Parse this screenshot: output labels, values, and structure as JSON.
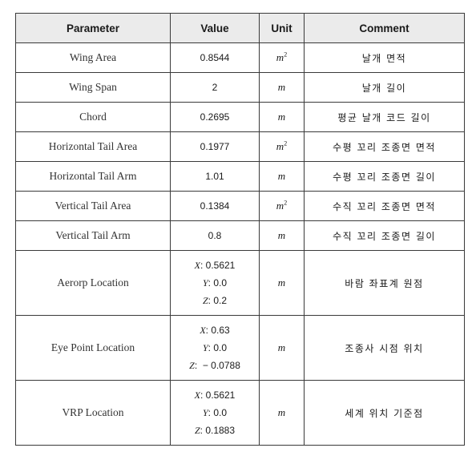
{
  "headers": [
    "Parameter",
    "Value",
    "Unit",
    "Comment"
  ],
  "rows": [
    {
      "param": "Wing Area",
      "value": "0.8544",
      "unit": "m",
      "unit_sup": "2",
      "comment": "날개 면적"
    },
    {
      "param": "Wing Span",
      "value": "2",
      "unit": "m",
      "unit_sup": "",
      "comment": "날개 길이"
    },
    {
      "param": "Chord",
      "value": "0.2695",
      "unit": "m",
      "unit_sup": "",
      "comment": "평균 날개 코드 길이"
    },
    {
      "param": "Horizontal Tail Area",
      "value": "0.1977",
      "unit": "m",
      "unit_sup": "2",
      "comment": "수평 꼬리 조종면 면적"
    },
    {
      "param": "Horizontal Tail Arm",
      "value": "1.01",
      "unit": "m",
      "unit_sup": "",
      "comment": "수평 꼬리 조종면 길이"
    },
    {
      "param": "Vertical Tail Area",
      "value": "0.1384",
      "unit": "m",
      "unit_sup": "2",
      "comment": "수직 꼬리 조종면 면적"
    },
    {
      "param": "Vertical Tail Arm",
      "value": "0.8",
      "unit": "m",
      "unit_sup": "",
      "comment": "수직 꼬리 조종면 길이"
    }
  ],
  "multi_rows": [
    {
      "param": "Aerorp Location",
      "coords": [
        {
          "axis": "X",
          "sep": ": ",
          "value": "0.5621"
        },
        {
          "axis": "Y",
          "sep": ": ",
          "value": "0.0"
        },
        {
          "axis": "Z",
          "sep": ": ",
          "value": "0.2"
        }
      ],
      "unit": "m",
      "comment": "바람 좌표계 원점"
    },
    {
      "param": "Eye Point Location",
      "coords": [
        {
          "axis": "X",
          "sep": ": ",
          "value": "0.63"
        },
        {
          "axis": "Y",
          "sep": ": ",
          "value": "0.0"
        },
        {
          "axis": "Z",
          "sep": ":  ",
          "value": "− 0.0788"
        }
      ],
      "unit": "m",
      "comment": "조종사 시점 위치"
    },
    {
      "param": "VRP Location",
      "coords": [
        {
          "axis": "X",
          "sep": ": ",
          "value": "0.5621"
        },
        {
          "axis": "Y",
          "sep": ": ",
          "value": "0.0"
        },
        {
          "axis": "Z",
          "sep": ": ",
          "value": "0.1883"
        }
      ],
      "unit": "m",
      "comment": "세계 위치 기준점"
    }
  ]
}
